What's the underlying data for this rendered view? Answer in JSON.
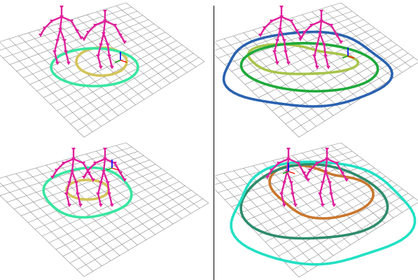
{
  "figure": {
    "background": "#ffffff",
    "divider_color": "#000000",
    "grid_color": "#8c8c8c",
    "skeleton_color": "#e0209c",
    "axis_colors": {
      "x": "#ff0000",
      "y": "#00a000",
      "z": "#0000ff"
    },
    "panels": [
      {
        "id": "top-left",
        "contours": [
          {
            "label": "inner",
            "color": "#d4c45a"
          },
          {
            "label": "outer",
            "color": "#38e6a0"
          }
        ]
      },
      {
        "id": "top-right",
        "contours": [
          {
            "label": "inner",
            "color": "#a8c44c"
          },
          {
            "label": "middle",
            "color": "#1eaa3a"
          },
          {
            "label": "outer",
            "color": "#2a62b0"
          }
        ]
      },
      {
        "id": "bottom-left",
        "contours": [
          {
            "label": "inner",
            "color": "#d4c45a"
          },
          {
            "label": "outer",
            "color": "#38e6a0"
          }
        ]
      },
      {
        "id": "bottom-right",
        "contours": [
          {
            "label": "inner",
            "color": "#c8762e"
          },
          {
            "label": "middle",
            "color": "#2e8c6c"
          },
          {
            "label": "outer",
            "color": "#22e0c4"
          }
        ]
      }
    ]
  }
}
